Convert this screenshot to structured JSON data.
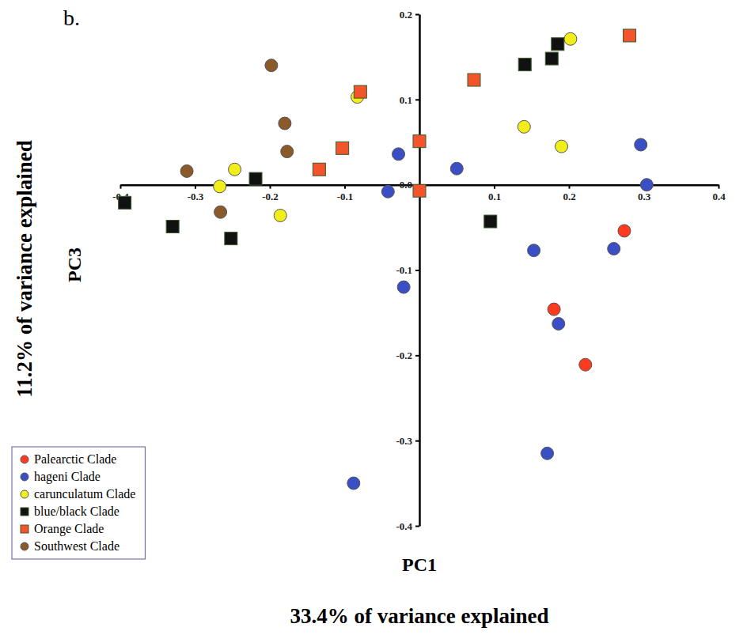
{
  "chart_data": {
    "type": "scatter",
    "panel_label": "b.",
    "xlabel": "PC1",
    "xlabel_sub": "33.4% of variance explained",
    "ylabel": "PC3",
    "ylabel_sub": "11.2% of variance explained",
    "xlim": [
      -0.4,
      0.4
    ],
    "ylim": [
      -0.4,
      0.2
    ],
    "xticks": [
      -0.4,
      -0.3,
      -0.2,
      -0.1,
      0.1,
      0.2,
      0.3,
      0.4
    ],
    "yticks": [
      -0.4,
      -0.3,
      -0.2,
      -0.1,
      {
        "value": 0,
        "label": "0.0"
      },
      0.1,
      0.2
    ],
    "legend": "lower left",
    "grid": false,
    "series": [
      {
        "name": "Palearctic Clade",
        "color": "#ff3b1f",
        "marker": "circle",
        "x": [
          0.274,
          0.18,
          0.222
        ],
        "values": [
          -0.054,
          -0.146,
          -0.211
        ]
      },
      {
        "name": "hageni Clade",
        "color": "#3a4fc4",
        "marker": "circle",
        "x": [
          -0.028,
          -0.042,
          0.05,
          0.296,
          0.304,
          0.153,
          0.26,
          0.186,
          -0.021,
          -0.088,
          0.171
        ],
        "values": [
          0.036,
          -0.008,
          0.019,
          0.047,
          0.0,
          -0.077,
          -0.075,
          -0.163,
          -0.12,
          -0.35,
          -0.315
        ]
      },
      {
        "name": "carunculatum Clade",
        "color": "#f2ee1c",
        "marker": "circle",
        "x": [
          0.202,
          -0.083,
          0.14,
          0.19,
          -0.247,
          -0.267,
          -0.186
        ],
        "values": [
          0.171,
          0.103,
          0.068,
          0.045,
          0.018,
          -0.002,
          -0.036
        ]
      },
      {
        "name": "blue/black Clade",
        "color": "#111111",
        "marker": "square",
        "x": [
          0.185,
          0.177,
          0.141,
          -0.219,
          -0.394,
          -0.33,
          -0.252,
          0.095
        ],
        "values": [
          0.165,
          0.148,
          0.141,
          0.007,
          -0.021,
          -0.049,
          -0.063,
          -0.043
        ]
      },
      {
        "name": "Orange Clade",
        "color": "#f2552c",
        "marker": "square",
        "x": [
          0.281,
          0.073,
          -0.079,
          -0.103,
          -0.134,
          0.0,
          0.0
        ],
        "values": [
          0.175,
          0.123,
          0.109,
          0.043,
          0.018,
          0.051,
          -0.007
        ]
      },
      {
        "name": "Southwest Clade",
        "color": "#8b5a2b",
        "marker": "circle",
        "x": [
          -0.198,
          -0.18,
          -0.177,
          -0.311,
          -0.266
        ],
        "values": [
          0.14,
          0.072,
          0.039,
          0.016,
          -0.032
        ]
      }
    ]
  }
}
